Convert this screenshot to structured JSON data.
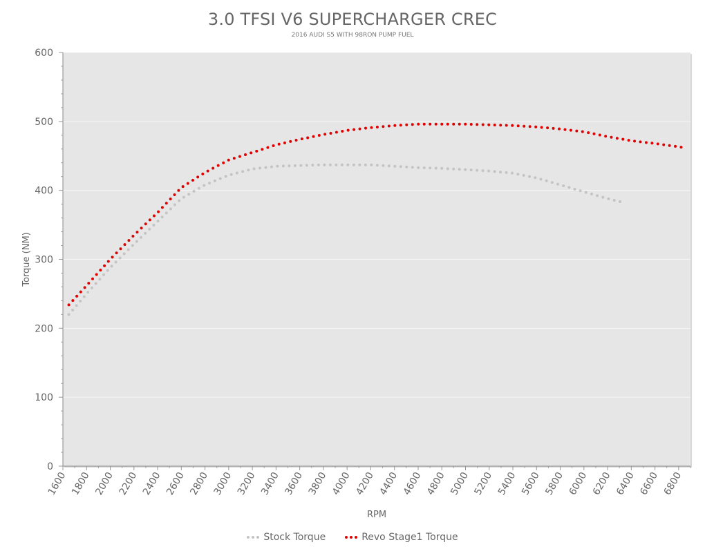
{
  "chart_data": {
    "type": "line",
    "title": "3.0 TFSI V6 SUPERCHARGER CREC",
    "subtitle": "2016 AUDI S5 WITH 98RON PUMP FUEL",
    "xlabel": "RPM",
    "ylabel": "Torque (NM)",
    "xlim": [
      1600,
      6900
    ],
    "ylim": [
      0,
      600
    ],
    "x_ticks": [
      1600,
      1800,
      2000,
      2200,
      2400,
      2600,
      2800,
      3000,
      3200,
      3400,
      3600,
      3800,
      4000,
      4200,
      4400,
      4600,
      4800,
      5000,
      5200,
      5400,
      5600,
      5800,
      6000,
      6200,
      6400,
      6600,
      6800
    ],
    "y_ticks": [
      0,
      100,
      200,
      300,
      400,
      500,
      600
    ],
    "grid": true,
    "legend_position": "bottom",
    "series": [
      {
        "name": "Stock Torque",
        "color": "#c4c4c4",
        "x": [
          1650,
          1800,
          2000,
          2200,
          2400,
          2600,
          2800,
          3000,
          3200,
          3400,
          3600,
          3800,
          4000,
          4200,
          4400,
          4600,
          4800,
          5000,
          5200,
          5400,
          5600,
          5800,
          6000,
          6200,
          6320
        ],
        "y": [
          220,
          250,
          288,
          322,
          355,
          388,
          408,
          422,
          431,
          435,
          436,
          437,
          437,
          437,
          435,
          433,
          432,
          430,
          428,
          425,
          418,
          408,
          398,
          388,
          383
        ]
      },
      {
        "name": "Revo Stage1 Torque",
        "color": "#e00000",
        "x": [
          1650,
          1800,
          2000,
          2200,
          2400,
          2600,
          2800,
          3000,
          3200,
          3400,
          3600,
          3800,
          4000,
          4200,
          4400,
          4600,
          4800,
          5000,
          5200,
          5400,
          5600,
          5800,
          6000,
          6200,
          6400,
          6600,
          6850
        ],
        "y": [
          234,
          262,
          300,
          335,
          368,
          404,
          426,
          444,
          455,
          466,
          474,
          481,
          487,
          491,
          494,
          496,
          496,
          496,
          495,
          494,
          492,
          489,
          485,
          478,
          472,
          468,
          462
        ]
      }
    ]
  }
}
